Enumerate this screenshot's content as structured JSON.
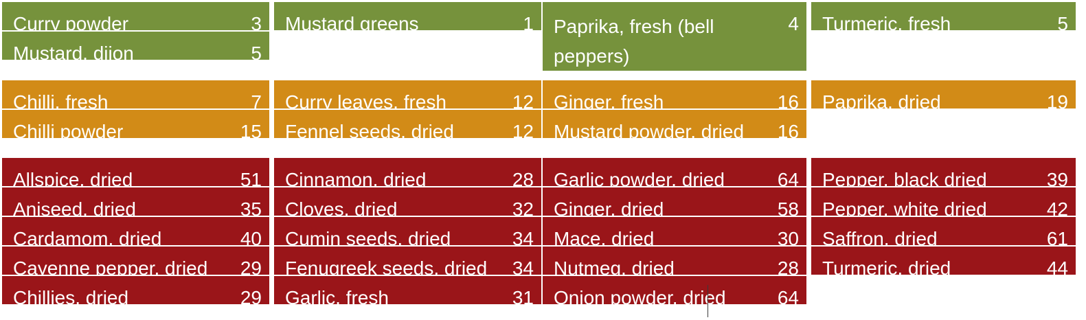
{
  "colors": {
    "green": "#76923c",
    "orange": "#d28b17",
    "red": "#9a1519"
  },
  "groups": [
    {
      "color": "green",
      "columns": [
        [
          {
            "name": "Curry powder",
            "value": "3"
          },
          {
            "name": "Mustard, dijon",
            "value": "5"
          }
        ],
        [
          {
            "name": "Mustard greens",
            "value": "1"
          }
        ],
        [
          {
            "name": "Paprika, fresh (bell peppers)",
            "value": "4"
          }
        ],
        [
          {
            "name": "Turmeric, fresh",
            "value": "5"
          }
        ]
      ]
    },
    {
      "color": "orange",
      "columns": [
        [
          {
            "name": "Chilli, fresh",
            "value": "7"
          },
          {
            "name": "Chilli powder",
            "value": "15"
          }
        ],
        [
          {
            "name": "Curry leaves, fresh",
            "value": "12"
          },
          {
            "name": "Fennel seeds, dried",
            "value": "12"
          }
        ],
        [
          {
            "name": "Ginger, fresh",
            "value": "16"
          },
          {
            "name": "Mustard powder, dried",
            "value": "16"
          }
        ],
        [
          {
            "name": "Paprika, dried",
            "value": "19"
          }
        ]
      ]
    },
    {
      "color": "red",
      "columns": [
        [
          {
            "name": "Allspice, dried",
            "value": "51"
          },
          {
            "name": "Aniseed, dried",
            "value": "35"
          },
          {
            "name": "Cardamom, dried",
            "value": "40"
          },
          {
            "name": "Cayenne pepper, dried",
            "value": "29"
          },
          {
            "name": "Chillies, dried",
            "value": "29"
          }
        ],
        [
          {
            "name": "Cinnamon, dried",
            "value": "28"
          },
          {
            "name": "Cloves, dried",
            "value": "32"
          },
          {
            "name": "Cumin seeds, dried",
            "value": "34"
          },
          {
            "name": "Fenugreek seeds, dried",
            "value": "34"
          },
          {
            "name": "Garlic, fresh",
            "value": "31"
          }
        ],
        [
          {
            "name": "Garlic powder, dried",
            "value": "64"
          },
          {
            "name": "Ginger, dried",
            "value": "58"
          },
          {
            "name": "Mace, dried",
            "value": "30"
          },
          {
            "name": "Nutmeg, dried",
            "value": "28"
          },
          {
            "name": "Onion powder, dried",
            "value": "64"
          }
        ],
        [
          {
            "name": "Pepper, black dried",
            "value": "39"
          },
          {
            "name": "Pepper, white dried",
            "value": "42"
          },
          {
            "name": "Saffron, dried",
            "value": "61"
          },
          {
            "name": "Turmeric, dried",
            "value": "44"
          }
        ]
      ]
    }
  ]
}
